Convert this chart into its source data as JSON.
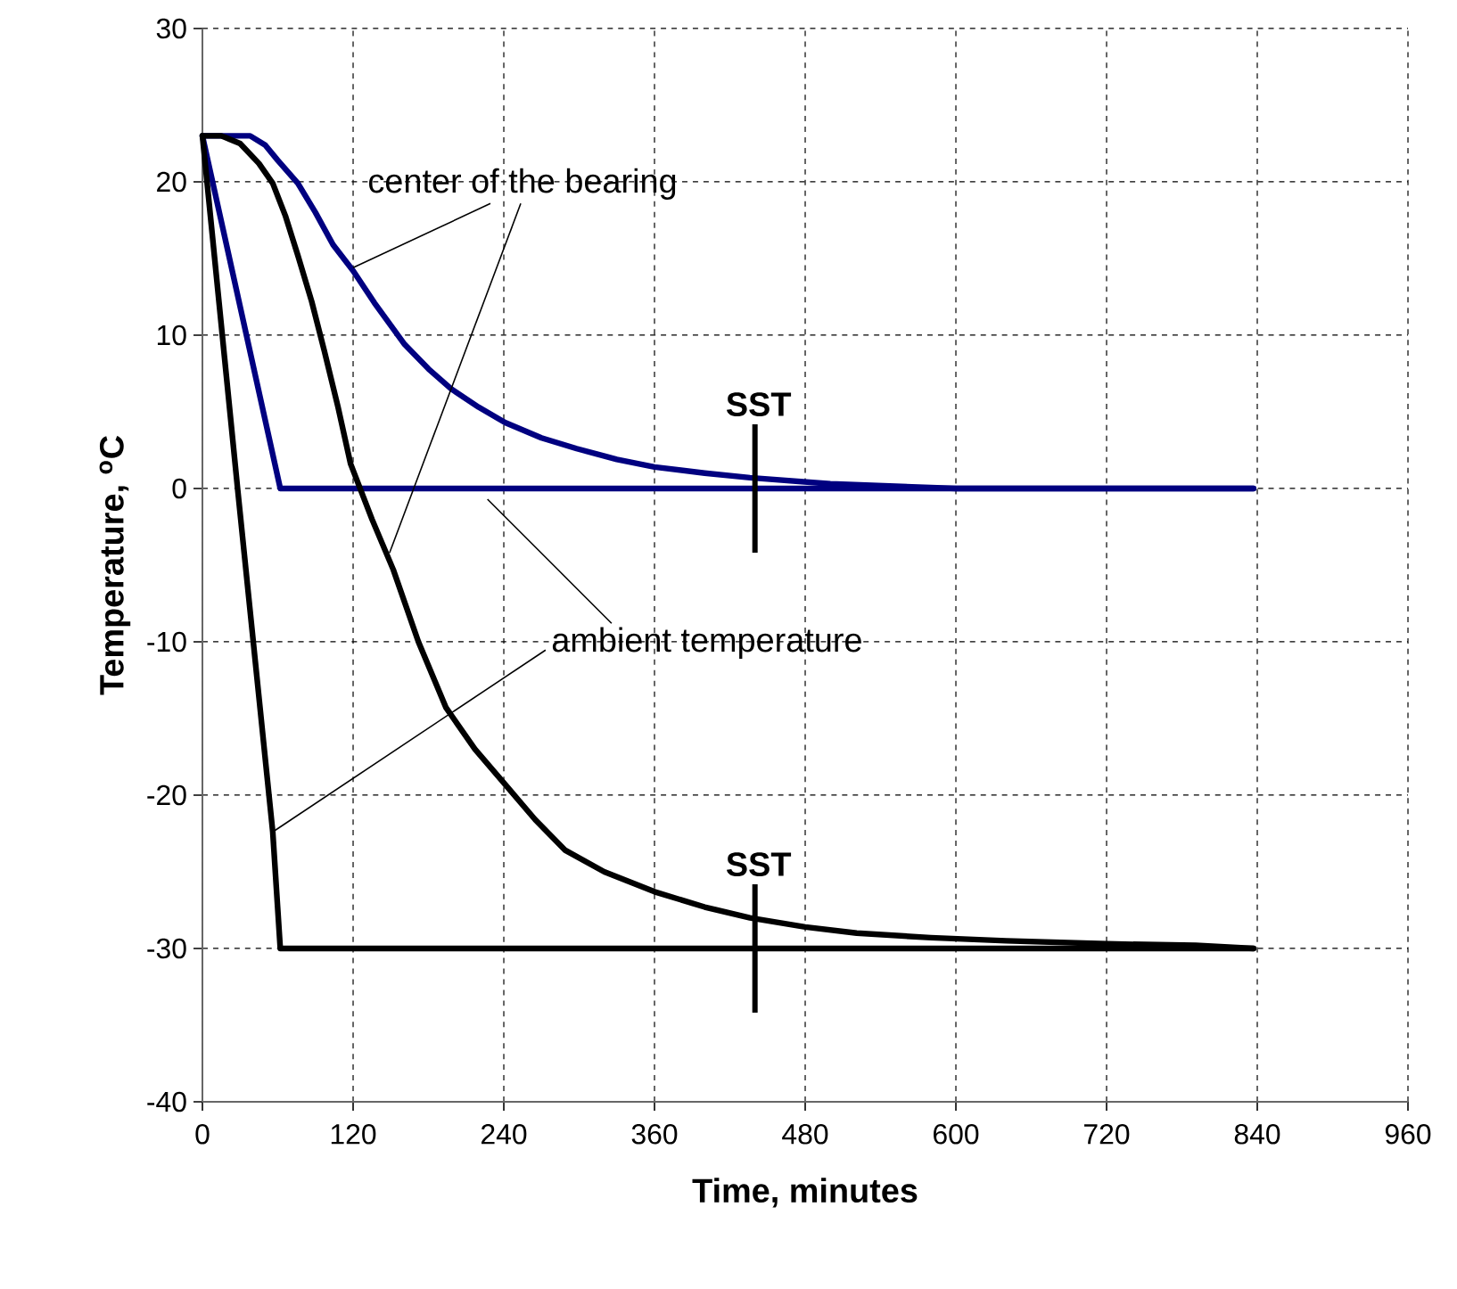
{
  "chart_data": {
    "type": "line",
    "xlabel": "Time, minutes",
    "ylabel": "Temperature, $^{o}$C",
    "xlim": [
      0,
      960
    ],
    "xticks": [
      0,
      120,
      240,
      360,
      480,
      600,
      720,
      840,
      960
    ],
    "ylim": [
      -40,
      30
    ],
    "yticks": [
      -40,
      -30,
      -20,
      -10,
      0,
      10,
      20,
      30
    ],
    "grid": true,
    "line_style": "solid",
    "marker": "none",
    "legend": false,
    "series": [
      {
        "color": "#000080",
        "x": [
          0,
          38,
          50,
          60,
          76,
          90,
          104,
          120,
          137,
          161,
          180,
          198,
          220,
          241,
          270,
          298,
          330,
          360,
          400,
          436,
          500,
          600,
          837
        ],
        "values": [
          23,
          23,
          22.4,
          21.4,
          19.9,
          18,
          15.9,
          14.2,
          12.1,
          9.4,
          7.8,
          6.5,
          5.3,
          4.3,
          3.3,
          2.6,
          1.9,
          1.4,
          1,
          0.7,
          0.3,
          0,
          0
        ]
      },
      {
        "color": "#000080",
        "x": [
          0,
          62,
          837
        ],
        "values": [
          23,
          0,
          0
        ]
      },
      {
        "color": "#000000",
        "x": [
          0,
          15,
          30,
          45,
          56,
          66,
          76,
          87,
          97,
          108,
          118,
          135,
          152,
          172,
          194,
          217,
          241,
          265,
          289,
          320,
          360,
          400,
          436,
          480,
          521,
          580,
          640,
          720,
          791,
          837
        ],
        "values": [
          23,
          23,
          22.5,
          21.2,
          19.9,
          17.8,
          15.2,
          12.2,
          9,
          5.3,
          1.6,
          -2,
          -5.3,
          -10,
          -14.3,
          -17,
          -19.3,
          -21.6,
          -23.6,
          -25,
          -26.3,
          -27.3,
          -28,
          -28.6,
          -29,
          -29.3,
          -29.5,
          -29.7,
          -29.8,
          -30
        ]
      },
      {
        "color": "#000000",
        "x": [
          0,
          28,
          56,
          62,
          837
        ],
        "values": [
          23,
          0,
          -22.4,
          -30,
          -30
        ]
      }
    ],
    "annotations": [
      {
        "text": "center of the bearing",
        "x": 120,
        "y": 14.4
      },
      {
        "text": "ambient temperature",
        "x": 56,
        "y": -22.4
      },
      {
        "text": "SST",
        "x": 440,
        "y": 0
      },
      {
        "text": "SST",
        "x": 440,
        "y": -30
      }
    ]
  }
}
